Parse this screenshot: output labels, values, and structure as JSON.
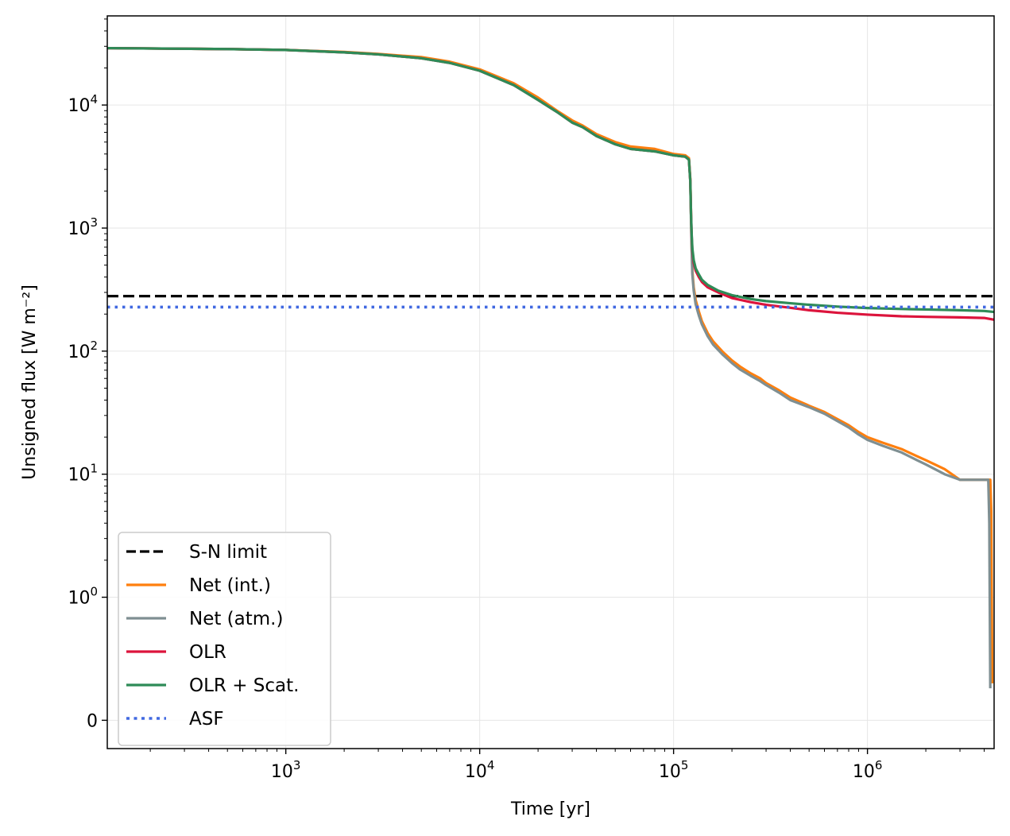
{
  "chart_data": {
    "type": "line",
    "xlabel": "Time [yr]",
    "ylabel": "Unsigned flux [W m⁻²]",
    "x_scale": "log",
    "y_scale": "symlog",
    "y_linthresh": 1,
    "xlim": [
      120,
      4500000
    ],
    "ylim": [
      -0.23,
      53000
    ],
    "grid": true,
    "legend_position": "lower-left",
    "x_ticks": [
      {
        "value": 1000,
        "base": "10",
        "exp": "3"
      },
      {
        "value": 10000,
        "base": "10",
        "exp": "4"
      },
      {
        "value": 100000,
        "base": "10",
        "exp": "5"
      },
      {
        "value": 1000000,
        "base": "10",
        "exp": "6"
      }
    ],
    "y_ticks": [
      {
        "value": 0,
        "base": "0",
        "exp": ""
      },
      {
        "value": 1,
        "base": "10",
        "exp": "0"
      },
      {
        "value": 10,
        "base": "10",
        "exp": "1"
      },
      {
        "value": 100,
        "base": "10",
        "exp": "2"
      },
      {
        "value": 1000,
        "base": "10",
        "exp": "3"
      },
      {
        "value": 10000,
        "base": "10",
        "exp": "4"
      }
    ],
    "series": [
      {
        "name": "S-N limit",
        "color": "#000000",
        "style": "dashed",
        "x": [
          120,
          4500000
        ],
        "y": [
          280,
          280
        ]
      },
      {
        "name": "Net (int.)",
        "color": "#ff7f0e",
        "style": "solid",
        "x": [
          120,
          500,
          1000,
          2000,
          3000,
          5000,
          7000,
          10000,
          15000,
          20000,
          25000,
          30000,
          34000,
          40000,
          50000,
          60000,
          80000,
          100000,
          115000,
          120000,
          122000,
          123000,
          124000,
          125000,
          127000,
          130000,
          135000,
          140000,
          150000,
          160000,
          180000,
          200000,
          220000,
          250000,
          280000,
          300000,
          350000,
          400000,
          500000,
          600000,
          700000,
          800000,
          900000,
          1000000,
          1200000,
          1500000,
          1800000,
          2000000,
          2500000,
          3000000,
          4000000,
          4300000,
          4350000,
          4400000
        ],
        "y": [
          29000,
          28500,
          28000,
          27000,
          26000,
          24500,
          22500,
          19500,
          15000,
          11500,
          9000,
          7500,
          6800,
          5800,
          5000,
          4600,
          4400,
          4000,
          3900,
          3700,
          2500,
          1300,
          700,
          450,
          330,
          260,
          210,
          175,
          140,
          120,
          98,
          84,
          75,
          66,
          60,
          55,
          48,
          42,
          36,
          32,
          28,
          25,
          22,
          20,
          18,
          16,
          14,
          13,
          11,
          9,
          9,
          9,
          5,
          0.3
        ]
      },
      {
        "name": "Net (atm.)",
        "color": "#7f8f92",
        "style": "solid",
        "x": [
          120,
          500,
          1000,
          2000,
          3000,
          5000,
          7000,
          10000,
          15000,
          20000,
          25000,
          30000,
          34000,
          40000,
          50000,
          60000,
          80000,
          100000,
          115000,
          120000,
          122000,
          123000,
          124000,
          125000,
          127000,
          130000,
          135000,
          140000,
          150000,
          160000,
          180000,
          200000,
          220000,
          250000,
          280000,
          300000,
          350000,
          400000,
          500000,
          600000,
          700000,
          800000,
          900000,
          1000000,
          1200000,
          1500000,
          1800000,
          2000000,
          2500000,
          3000000,
          4000000,
          4200000,
          4250000,
          4300000
        ],
        "y": [
          29000,
          28500,
          28000,
          26800,
          25800,
          24000,
          22000,
          19000,
          14500,
          11000,
          8800,
          7200,
          6600,
          5600,
          4800,
          4400,
          4200,
          3900,
          3800,
          3600,
          2400,
          1200,
          650,
          420,
          310,
          240,
          195,
          165,
          132,
          113,
          93,
          80,
          71,
          63,
          57,
          53,
          46,
          40,
          35,
          31,
          27,
          24,
          21,
          19,
          17,
          15,
          13,
          12,
          10,
          9,
          9,
          9,
          4,
          0.26
        ]
      },
      {
        "name": "OLR",
        "color": "#dc143c",
        "style": "solid",
        "x": [
          120,
          500,
          1000,
          2000,
          3000,
          5000,
          7000,
          10000,
          15000,
          20000,
          25000,
          30000,
          34000,
          40000,
          50000,
          60000,
          80000,
          100000,
          115000,
          120000,
          122000,
          123000,
          124000,
          125000,
          127000,
          130000,
          135000,
          140000,
          150000,
          170000,
          200000,
          250000,
          300000,
          400000,
          500000,
          700000,
          1000000,
          1500000,
          2000000,
          3000000,
          4000000,
          4500000
        ],
        "y": [
          29000,
          28500,
          28000,
          26800,
          25800,
          24000,
          22000,
          19000,
          14500,
          11000,
          8800,
          7200,
          6600,
          5600,
          4800,
          4400,
          4200,
          3900,
          3800,
          3600,
          2400,
          1300,
          850,
          650,
          520,
          450,
          400,
          365,
          330,
          300,
          270,
          250,
          238,
          225,
          215,
          205,
          198,
          192,
          190,
          188,
          186,
          180
        ]
      },
      {
        "name": "OLR + Scat.",
        "color": "#2e8b57",
        "style": "solid",
        "x": [
          120,
          500,
          1000,
          2000,
          3000,
          5000,
          7000,
          10000,
          15000,
          20000,
          25000,
          30000,
          34000,
          40000,
          50000,
          60000,
          80000,
          100000,
          115000,
          120000,
          122000,
          123000,
          124000,
          125000,
          127000,
          130000,
          135000,
          140000,
          150000,
          170000,
          200000,
          250000,
          300000,
          400000,
          500000,
          700000,
          1000000,
          1500000,
          2000000,
          3000000,
          4000000,
          4500000
        ],
        "y": [
          29000,
          28500,
          28000,
          26800,
          25800,
          24000,
          22000,
          19000,
          14500,
          11000,
          8800,
          7200,
          6600,
          5600,
          4800,
          4400,
          4200,
          3900,
          3800,
          3600,
          2400,
          1300,
          880,
          680,
          550,
          470,
          420,
          380,
          345,
          310,
          285,
          265,
          255,
          245,
          238,
          230,
          224,
          220,
          218,
          215,
          212,
          208
        ]
      },
      {
        "name": "ASF",
        "color": "#4169e1",
        "style": "dotted",
        "x": [
          120,
          4500000
        ],
        "y": [
          228,
          228
        ]
      }
    ]
  }
}
